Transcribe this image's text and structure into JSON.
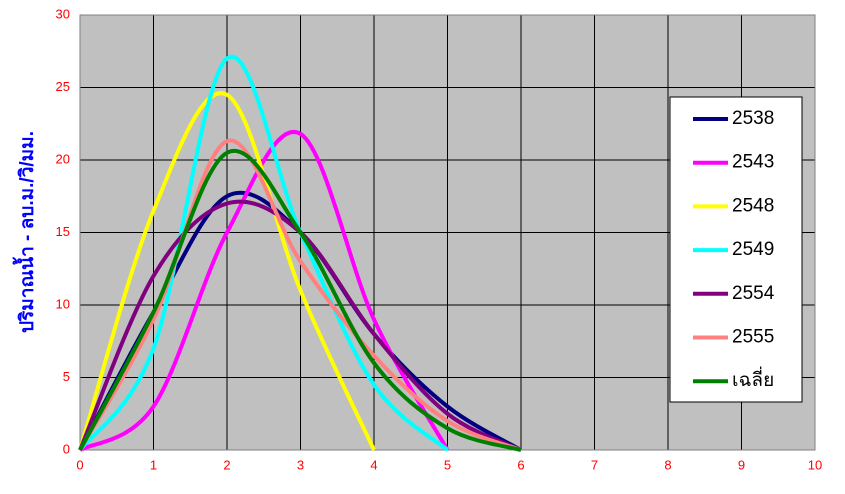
{
  "chart_data": {
    "type": "line",
    "y_label": "ปริมาณน้ำ  -  ลบ.ม./วิ/มม.",
    "x": [
      0,
      1,
      2,
      3,
      4,
      5,
      6
    ],
    "series": [
      {
        "name": "2538",
        "color": "#000080",
        "values": [
          0,
          9.5,
          17.5,
          15,
          8,
          3,
          0
        ]
      },
      {
        "name": "2543",
        "color": "#ff00ff",
        "values": [
          0,
          3,
          15,
          21.8,
          9,
          0,
          null
        ]
      },
      {
        "name": "2548",
        "color": "#ffff00",
        "values": [
          0,
          16.5,
          24.5,
          11,
          0,
          null,
          null
        ]
      },
      {
        "name": "2549",
        "color": "#00ffff",
        "values": [
          0,
          7,
          27,
          15,
          4.5,
          0,
          null
        ]
      },
      {
        "name": "2554",
        "color": "#800080",
        "values": [
          0,
          12,
          17,
          15,
          8,
          2.5,
          0
        ]
      },
      {
        "name": "2555",
        "color": "#ff8080",
        "values": [
          0,
          9,
          21.3,
          13,
          6.5,
          2,
          0
        ]
      },
      {
        "name": "เฉลี่ย",
        "color": "#008000",
        "values": [
          0,
          9.5,
          20.5,
          15,
          6,
          1.5,
          0
        ]
      }
    ],
    "xlim": [
      0,
      10
    ],
    "xticks": [
      0,
      1,
      2,
      3,
      4,
      5,
      6,
      7,
      8,
      9,
      10
    ],
    "ylim": [
      0,
      30
    ],
    "yticks": [
      0,
      5,
      10,
      15,
      20,
      25,
      30
    ],
    "grid": true,
    "background": "#c0c0c0",
    "legend": "right"
  }
}
